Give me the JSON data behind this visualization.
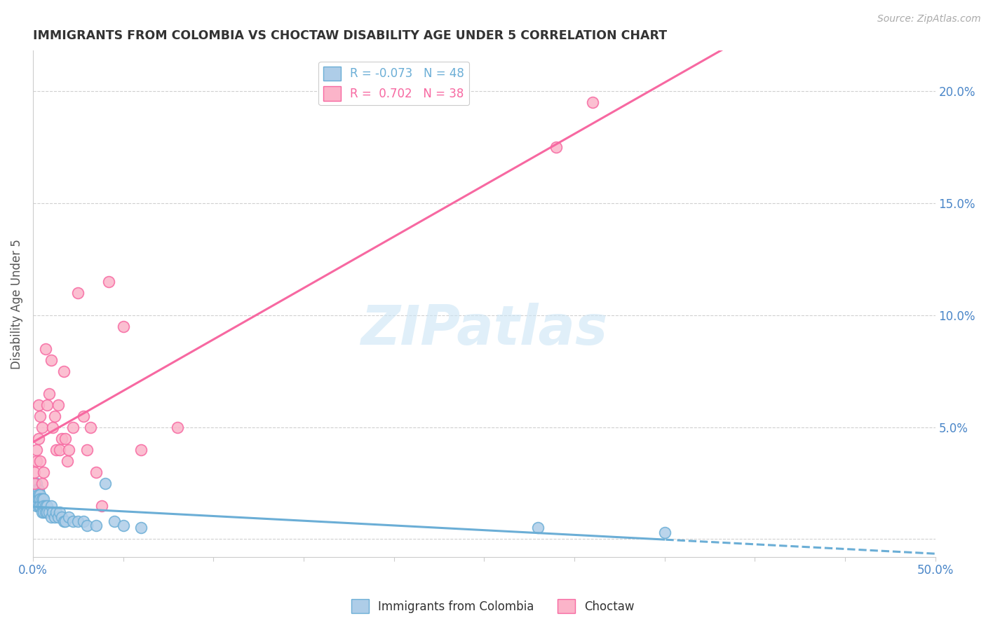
{
  "title": "IMMIGRANTS FROM COLOMBIA VS CHOCTAW DISABILITY AGE UNDER 5 CORRELATION CHART",
  "source": "Source: ZipAtlas.com",
  "ylabel": "Disability Age Under 5",
  "right_yticks": [
    0.0,
    0.05,
    0.1,
    0.15,
    0.2
  ],
  "right_yticklabels": [
    "",
    "5.0%",
    "10.0%",
    "15.0%",
    "20.0%"
  ],
  "xmin": 0.0,
  "xmax": 0.5,
  "ymin": -0.008,
  "ymax": 0.218,
  "watermark": "ZIPatlas",
  "colombia_x": [
    0.001,
    0.001,
    0.001,
    0.001,
    0.002,
    0.002,
    0.002,
    0.002,
    0.003,
    0.003,
    0.003,
    0.003,
    0.004,
    0.004,
    0.004,
    0.005,
    0.005,
    0.005,
    0.006,
    0.006,
    0.006,
    0.007,
    0.007,
    0.008,
    0.008,
    0.009,
    0.01,
    0.01,
    0.011,
    0.012,
    0.013,
    0.014,
    0.015,
    0.016,
    0.017,
    0.018,
    0.02,
    0.022,
    0.025,
    0.028,
    0.03,
    0.035,
    0.04,
    0.045,
    0.05,
    0.06,
    0.28,
    0.35
  ],
  "colombia_y": [
    0.022,
    0.02,
    0.018,
    0.016,
    0.025,
    0.022,
    0.018,
    0.015,
    0.022,
    0.02,
    0.018,
    0.015,
    0.02,
    0.018,
    0.015,
    0.018,
    0.015,
    0.012,
    0.018,
    0.015,
    0.012,
    0.015,
    0.012,
    0.015,
    0.012,
    0.012,
    0.015,
    0.01,
    0.012,
    0.01,
    0.012,
    0.01,
    0.012,
    0.01,
    0.008,
    0.008,
    0.01,
    0.008,
    0.008,
    0.008,
    0.006,
    0.006,
    0.025,
    0.008,
    0.006,
    0.005,
    0.005,
    0.003
  ],
  "choctaw_x": [
    0.001,
    0.001,
    0.002,
    0.002,
    0.003,
    0.003,
    0.004,
    0.004,
    0.005,
    0.005,
    0.006,
    0.007,
    0.008,
    0.009,
    0.01,
    0.011,
    0.012,
    0.013,
    0.014,
    0.015,
    0.016,
    0.017,
    0.018,
    0.019,
    0.02,
    0.022,
    0.025,
    0.028,
    0.03,
    0.032,
    0.035,
    0.038,
    0.042,
    0.05,
    0.06,
    0.08,
    0.29,
    0.31
  ],
  "choctaw_y": [
    0.025,
    0.03,
    0.04,
    0.035,
    0.045,
    0.06,
    0.035,
    0.055,
    0.05,
    0.025,
    0.03,
    0.085,
    0.06,
    0.065,
    0.08,
    0.05,
    0.055,
    0.04,
    0.06,
    0.04,
    0.045,
    0.075,
    0.045,
    0.035,
    0.04,
    0.05,
    0.11,
    0.055,
    0.04,
    0.05,
    0.03,
    0.015,
    0.115,
    0.095,
    0.04,
    0.05,
    0.175,
    0.195
  ],
  "colombia_color": "#aecde8",
  "colombia_edge": "#6baed6",
  "choctaw_color": "#fbb4c9",
  "choctaw_edge": "#f768a1",
  "line_color_colombia": "#6baed6",
  "line_color_choctaw": "#f768a1",
  "legend_label_colombia": "R = -0.073   N = 48",
  "legend_label_choctaw": "R =  0.702   N = 38",
  "legend_color_colombia": "#6baed6",
  "legend_color_choctaw": "#f768a1"
}
